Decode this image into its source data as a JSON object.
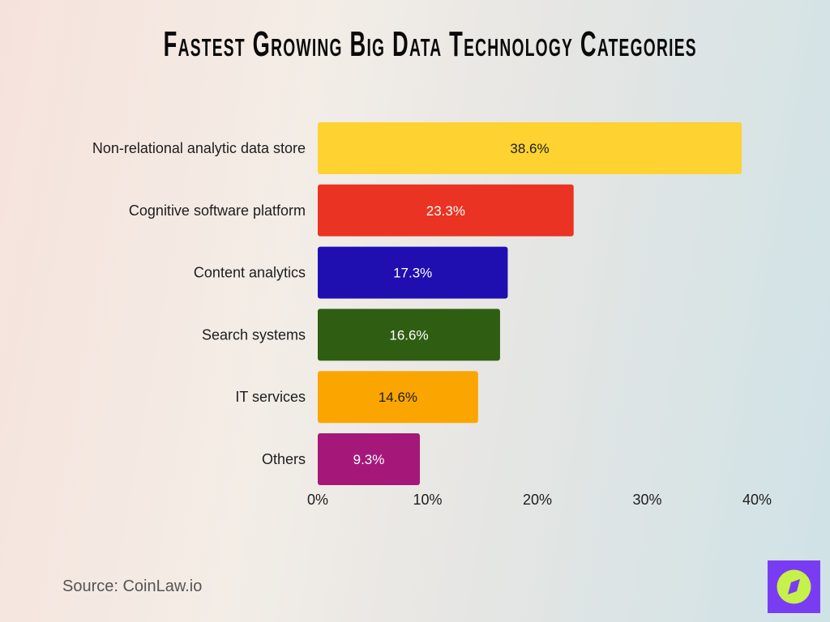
{
  "chart_data": {
    "type": "bar",
    "orientation": "horizontal",
    "title": "Fastest Growing Big Data Technology Categories",
    "categories": [
      "Non-relational analytic data store",
      "Cognitive software platform",
      "Content analytics",
      "Search systems",
      "IT services",
      "Others"
    ],
    "values": [
      38.6,
      23.3,
      17.3,
      16.6,
      14.6,
      9.3
    ],
    "data_labels": [
      "38.6%",
      "23.3%",
      "17.3%",
      "16.6%",
      "14.6%",
      "9.3%"
    ],
    "colors": [
      "#fdd231",
      "#ea3323",
      "#1f0fb0",
      "#2f5e12",
      "#fba500",
      "#a5187a"
    ],
    "label_colors": [
      "#1d1d1d",
      "#ffffff",
      "#ffffff",
      "#ffffff",
      "#1d1d1d",
      "#ffffff"
    ],
    "xlim": [
      0,
      40
    ],
    "xticks": [
      0,
      10,
      20,
      30,
      40
    ],
    "xtick_labels": [
      "0%",
      "10%",
      "20%",
      "30%",
      "40%"
    ],
    "xlabel": "",
    "ylabel": "",
    "grid": false
  },
  "source": "Source: CoinLaw.io",
  "logo": {
    "icon": "compass-icon",
    "bg": "#7a3cf2",
    "fg": "#c6f04a"
  }
}
